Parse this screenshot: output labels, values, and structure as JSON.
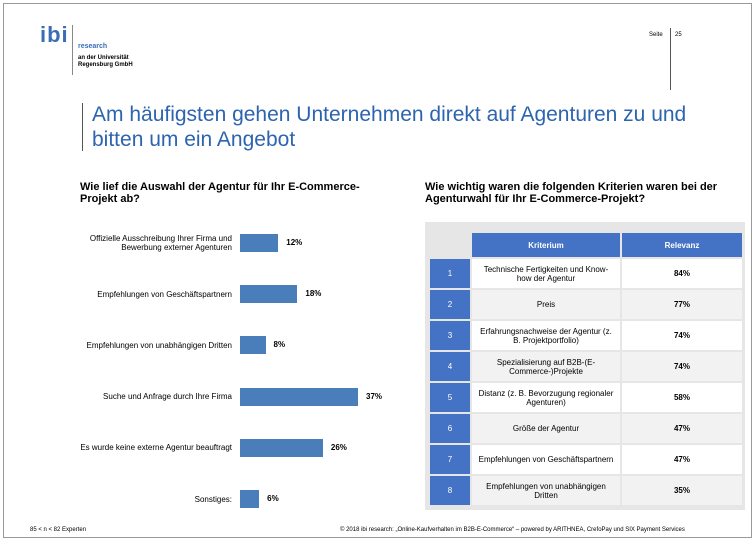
{
  "header": {
    "logo": "ibi",
    "brand": "research",
    "org": "an der Universität Regensburg GmbH",
    "page_label": "Seite",
    "page_number": "25"
  },
  "title": "Am häufigsten gehen Unternehmen direkt auf Agenturen zu und bitten um ein Angebot",
  "chart_data": {
    "type": "bar",
    "orientation": "horizontal",
    "title": "Wie lief die Auswahl der Agentur für Ihr E-Commerce-Projekt ab?",
    "categories": [
      "Offizielle Ausschreibung Ihrer Firma und Bewerbung externer Agenturen",
      "Empfehlungen von Geschäftspartnern",
      "Empfehlungen von unabhängigen Dritten",
      "Suche und Anfrage durch Ihre Firma",
      "Es wurde keine externe Agentur beauftragt",
      "Sonstiges:"
    ],
    "values": [
      12,
      18,
      8,
      37,
      26,
      6
    ],
    "value_labels": [
      "12%",
      "18%",
      "8%",
      "37%",
      "26%",
      "6%"
    ],
    "color": "#4a7ebb"
  },
  "table": {
    "title": "Wie wichtig waren die folgenden Kriterien waren bei der Agenturwahl für Ihr E-Commerce-Projekt?",
    "columns": [
      "Kriterium",
      "Relevanz"
    ],
    "rows": [
      [
        "1",
        "Technische Fertigkeiten und Know-how der Agentur",
        "84%"
      ],
      [
        "2",
        "Preis",
        "77%"
      ],
      [
        "3",
        "Erfahrungsnachweise der Agentur (z. B. Projektportfolio)",
        "74%"
      ],
      [
        "4",
        "Spezialisierung auf B2B-(E-Commerce-)Projekte",
        "74%"
      ],
      [
        "5",
        "Distanz (z. B. Bevorzugung regionaler Agenturen)",
        "58%"
      ],
      [
        "6",
        "Größe der Agentur",
        "47%"
      ],
      [
        "7",
        "Empfehlungen von Geschäftspartnern",
        "47%"
      ],
      [
        "8",
        "Empfehlungen von unabhängigen Dritten",
        "35%"
      ]
    ]
  },
  "footer": {
    "sample": "85 < n < 82 Experten",
    "source": "© 2018 ibi research: „Online-Kaufverhalten im B2B-E-Commerce“ – powered by ARITHNEA, CrefoPay und SIX Payment Services"
  }
}
